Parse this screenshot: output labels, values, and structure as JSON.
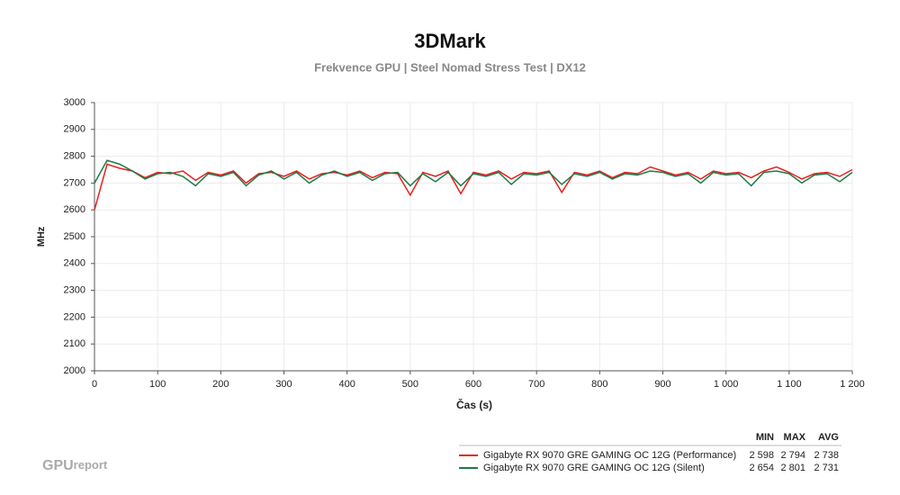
{
  "chart_data": {
    "type": "line",
    "title": "3DMark",
    "subtitle": "Frekvence GPU | Steel Nomad Stress Test | DX12",
    "x_label": "Čas (s)",
    "y_label": "MHz",
    "x": [
      0,
      20,
      40,
      60,
      80,
      100,
      120,
      140,
      160,
      180,
      200,
      220,
      240,
      260,
      280,
      300,
      320,
      340,
      360,
      380,
      400,
      420,
      440,
      460,
      480,
      500,
      520,
      540,
      560,
      580,
      600,
      620,
      640,
      660,
      680,
      700,
      720,
      740,
      760,
      780,
      800,
      820,
      840,
      860,
      880,
      900,
      920,
      940,
      960,
      980,
      1000,
      1020,
      1040,
      1060,
      1080,
      1100,
      1120,
      1140,
      1160,
      1180,
      1200
    ],
    "series": [
      {
        "name": "Gigabyte RX 9070 GRE GAMING OC 12G (Performance)",
        "color": "#e8201c",
        "values": [
          2600,
          2770,
          2755,
          2745,
          2720,
          2740,
          2735,
          2745,
          2710,
          2740,
          2730,
          2745,
          2700,
          2735,
          2740,
          2725,
          2745,
          2715,
          2735,
          2740,
          2730,
          2745,
          2720,
          2740,
          2735,
          2655,
          2740,
          2725,
          2745,
          2660,
          2740,
          2730,
          2745,
          2715,
          2740,
          2735,
          2745,
          2665,
          2740,
          2730,
          2745,
          2720,
          2740,
          2735,
          2760,
          2745,
          2730,
          2740,
          2715,
          2745,
          2735,
          2740,
          2720,
          2745,
          2760,
          2740,
          2715,
          2735,
          2740,
          2725,
          2750
        ],
        "stats": [
          {
            "value": 2598,
            "label": "2 598"
          },
          {
            "value": 2794,
            "label": "2 794"
          },
          {
            "value": 2738,
            "label": "2 738"
          }
        ]
      },
      {
        "name": "Gigabyte RX 9070 GRE GAMING OC 12G (Silent)",
        "color": "#1e7a46",
        "values": [
          2700,
          2785,
          2770,
          2745,
          2715,
          2735,
          2740,
          2725,
          2690,
          2735,
          2725,
          2740,
          2690,
          2730,
          2745,
          2715,
          2740,
          2700,
          2730,
          2745,
          2725,
          2740,
          2710,
          2735,
          2740,
          2690,
          2735,
          2705,
          2740,
          2690,
          2735,
          2725,
          2740,
          2695,
          2735,
          2730,
          2740,
          2695,
          2735,
          2725,
          2740,
          2715,
          2735,
          2730,
          2745,
          2740,
          2725,
          2735,
          2700,
          2740,
          2730,
          2735,
          2690,
          2740,
          2745,
          2735,
          2700,
          2730,
          2735,
          2705,
          2740
        ],
        "stats": [
          {
            "value": 2654,
            "label": "2 654"
          },
          {
            "value": 2801,
            "label": "2 801"
          },
          {
            "value": 2731,
            "label": "2 731"
          }
        ]
      }
    ],
    "stats_labels": [
      "MIN",
      "MAX",
      "AVG"
    ],
    "xlim": [
      0,
      1200
    ],
    "xticks": [
      0,
      100,
      200,
      300,
      400,
      500,
      600,
      700,
      800,
      900,
      {
        "value": 1000,
        "label": "1 000"
      },
      {
        "value": 1100,
        "label": "1 100"
      },
      {
        "value": 1200,
        "label": "1 200"
      }
    ],
    "ylim": [
      2000,
      3000
    ],
    "yticks": [
      2000,
      2100,
      2200,
      2300,
      2400,
      2500,
      2600,
      2700,
      2800,
      2900,
      3000
    ],
    "grid": true,
    "watermark": {
      "bold": "GPU",
      "light": "report"
    }
  }
}
